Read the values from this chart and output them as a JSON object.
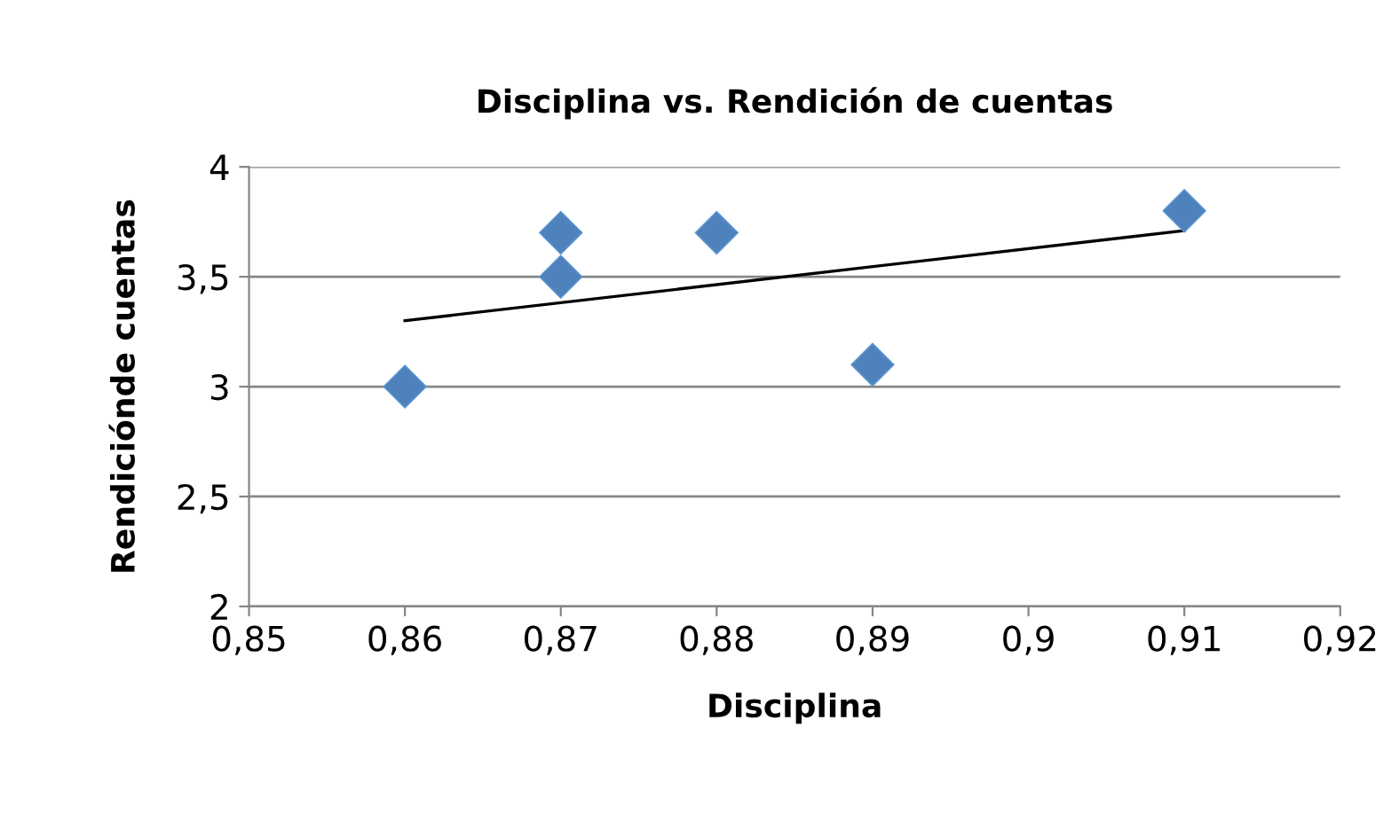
{
  "chart_data": {
    "type": "scatter",
    "title": "Disciplina vs. Rendición de cuentas",
    "xlabel": "Disciplina",
    "ylabel": "Rendiciónde cuentas",
    "series": [
      {
        "color": "#4f81bd",
        "marker": "diamond",
        "x": [
          0.86,
          0.87,
          0.87,
          0.88,
          0.89,
          0.91
        ],
        "values": [
          3.0,
          3.7,
          3.5,
          3.7,
          3.1,
          3.8
        ]
      },
      {
        "type": "line",
        "color": "#000000",
        "marker": "none",
        "line_style": "solid",
        "x": [
          0.86,
          0.91
        ],
        "values": [
          3.3,
          3.71
        ]
      }
    ],
    "xlim": [
      0.85,
      0.92
    ],
    "xticks": [
      {
        "value": 0.85,
        "label": "0,85"
      },
      {
        "value": 0.86,
        "label": "0,86"
      },
      {
        "value": 0.87,
        "label": "0,87"
      },
      {
        "value": 0.88,
        "label": "0,88"
      },
      {
        "value": 0.89,
        "label": "0,89"
      },
      {
        "value": 0.9,
        "label": "0,9"
      },
      {
        "value": 0.91,
        "label": "0,91"
      },
      {
        "value": 0.92,
        "label": "0,92"
      }
    ],
    "ylim": [
      2,
      4
    ],
    "yticks": [
      2,
      {
        "value": 2.5,
        "label": "2,5"
      },
      3,
      {
        "value": 3.5,
        "label": "3,5"
      },
      4
    ],
    "grid": "y",
    "legend": false
  }
}
